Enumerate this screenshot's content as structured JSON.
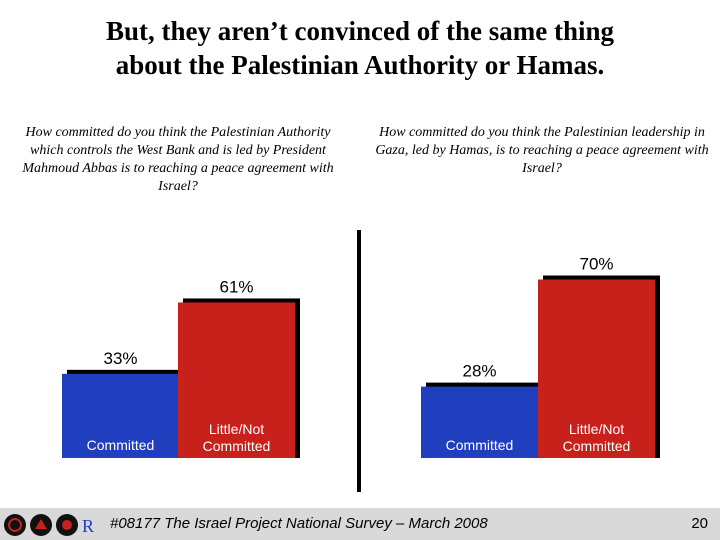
{
  "slide": {
    "title_line1": "But, they aren’t convinced of the same thing",
    "title_line2": "about the Palestinian Authority or Hamas.",
    "footer": "#08177 The Israel Project National Survey – March 2008",
    "page_number": "20"
  },
  "colors": {
    "committed": "#1f3fbf",
    "not_committed": "#c8201a",
    "shadow": "#000000"
  },
  "chart_data": [
    {
      "type": "bar",
      "question": "How committed do you think the Palestinian Authority which controls the West Bank and is led by President Mahmoud Abbas is to reaching a peace agreement with Israel?",
      "categories": [
        "Committed",
        "Little/Not Committed"
      ],
      "values": [
        33,
        61
      ],
      "value_labels": [
        "33%",
        "61%"
      ],
      "ylim": [
        0,
        100
      ]
    },
    {
      "type": "bar",
      "question": "How committed do you think the Palestinian leadership in Gaza, led by Hamas, is to reaching a peace agreement with Israel?",
      "categories": [
        "Committed",
        "Little/Not Committed"
      ],
      "values": [
        28,
        70
      ],
      "value_labels": [
        "28%",
        "70%"
      ],
      "ylim": [
        0,
        100
      ]
    }
  ]
}
